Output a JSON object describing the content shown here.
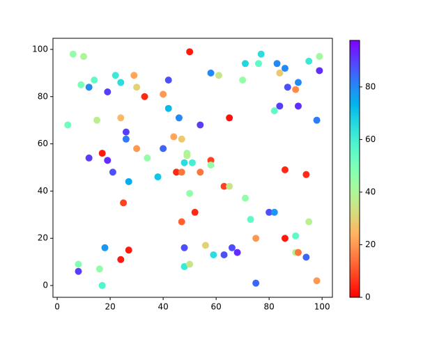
{
  "chart_data": {
    "type": "scatter",
    "x": [
      6,
      10,
      50,
      77,
      99,
      95,
      83,
      71,
      76,
      58,
      61,
      84,
      86,
      99,
      22,
      29,
      70,
      14,
      9,
      12,
      24,
      42,
      30,
      19,
      40,
      33,
      91,
      87,
      90,
      84,
      91,
      82,
      42,
      46,
      98,
      4,
      15,
      24,
      65,
      54,
      26,
      26,
      44,
      47,
      30,
      40,
      17,
      12,
      34,
      19,
      49,
      49,
      58,
      58,
      48,
      51,
      21,
      45,
      47,
      54,
      38,
      86,
      94,
      27,
      63,
      65,
      50,
      71,
      80,
      82,
      25,
      52,
      73,
      95,
      47,
      90,
      75,
      86,
      18,
      48,
      56,
      66,
      68,
      63,
      59,
      27,
      24,
      90,
      91,
      94,
      8,
      16,
      48,
      50,
      8,
      17,
      75,
      98
    ],
    "y": [
      98,
      97,
      99,
      98,
      97,
      95,
      94,
      94,
      94,
      90,
      89,
      90,
      92,
      91,
      89,
      89,
      87,
      87,
      85,
      84,
      86,
      87,
      84,
      82,
      81,
      80,
      86,
      84,
      83,
      76,
      76,
      74,
      75,
      71,
      70,
      68,
      70,
      71,
      71,
      68,
      65,
      62,
      63,
      62,
      58,
      58,
      56,
      54,
      54,
      53,
      56,
      55,
      53,
      51,
      52,
      52,
      48,
      48,
      48,
      48,
      46,
      49,
      47,
      44,
      42,
      42,
      39,
      37,
      31,
      31,
      35,
      31,
      28,
      27,
      27,
      21,
      20,
      20,
      16,
      16,
      17,
      16,
      14,
      13,
      13,
      15,
      11,
      14,
      14,
      12,
      9,
      7,
      8,
      9,
      6,
      0,
      1,
      2
    ],
    "c": [
      45,
      40,
      3,
      65,
      42,
      62,
      80,
      67,
      55,
      80,
      35,
      28,
      80,
      92,
      62,
      22,
      45,
      55,
      50,
      80,
      65,
      88,
      30,
      90,
      20,
      5,
      80,
      88,
      18,
      90,
      92,
      55,
      72,
      80,
      82,
      52,
      37,
      25,
      2,
      90,
      90,
      82,
      22,
      28,
      20,
      85,
      3,
      90,
      45,
      92,
      42,
      38,
      8,
      45,
      65,
      60,
      88,
      5,
      15,
      15,
      70,
      5,
      5,
      75,
      8,
      35,
      45,
      45,
      88,
      78,
      8,
      5,
      55,
      38,
      12,
      55,
      20,
      3,
      78,
      88,
      30,
      88,
      92,
      88,
      65,
      3,
      3,
      38,
      15,
      85,
      48,
      45,
      62,
      35,
      90,
      58,
      85,
      20
    ],
    "colormap": "rainbow_r",
    "xlim": [
      -1.6,
      103.9
    ],
    "ylim": [
      -5,
      104.7
    ],
    "xticks": [
      0,
      20,
      40,
      60,
      80,
      100
    ],
    "yticks": [
      0,
      20,
      40,
      60,
      80,
      100
    ],
    "clim": [
      0,
      97.7
    ],
    "cticks": [
      0,
      20,
      40,
      60,
      80
    ]
  }
}
